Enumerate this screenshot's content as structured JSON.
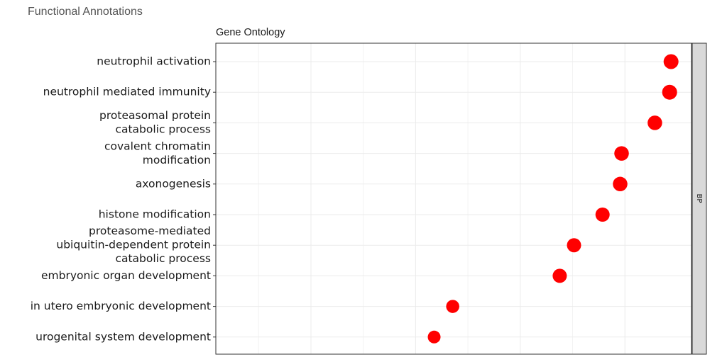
{
  "page": {
    "section_title": "Functional Annotations"
  },
  "chart_data": {
    "type": "scatter",
    "title": "Gene Ontology",
    "facet_label": "BP",
    "xlabel": "",
    "ylabel": "",
    "x_range": [
      0,
      1
    ],
    "grid": true,
    "point_color": "#ff0000",
    "categories": [
      {
        "label": [
          "neutrophil activation"
        ],
        "x": 0.957,
        "size": 1.0
      },
      {
        "label": [
          "neutrophil mediated immunity"
        ],
        "x": 0.954,
        "size": 1.0
      },
      {
        "label": [
          "proteasomal protein",
          "catabolic process"
        ],
        "x": 0.923,
        "size": 0.95
      },
      {
        "label": [
          "covalent chromatin",
          "modification"
        ],
        "x": 0.853,
        "size": 0.95
      },
      {
        "label": [
          "axonogenesis"
        ],
        "x": 0.85,
        "size": 0.95
      },
      {
        "label": [
          "histone modification"
        ],
        "x": 0.813,
        "size": 0.9
      },
      {
        "label": [
          "proteasome-mediated",
          "ubiquitin-dependent protein",
          "catabolic process"
        ],
        "x": 0.753,
        "size": 0.9
      },
      {
        "label": [
          "embryonic organ development"
        ],
        "x": 0.723,
        "size": 0.9
      },
      {
        "label": [
          "in utero embryonic development"
        ],
        "x": 0.498,
        "size": 0.75
      },
      {
        "label": [
          "urogenital system development"
        ],
        "x": 0.459,
        "size": 0.7
      }
    ]
  }
}
